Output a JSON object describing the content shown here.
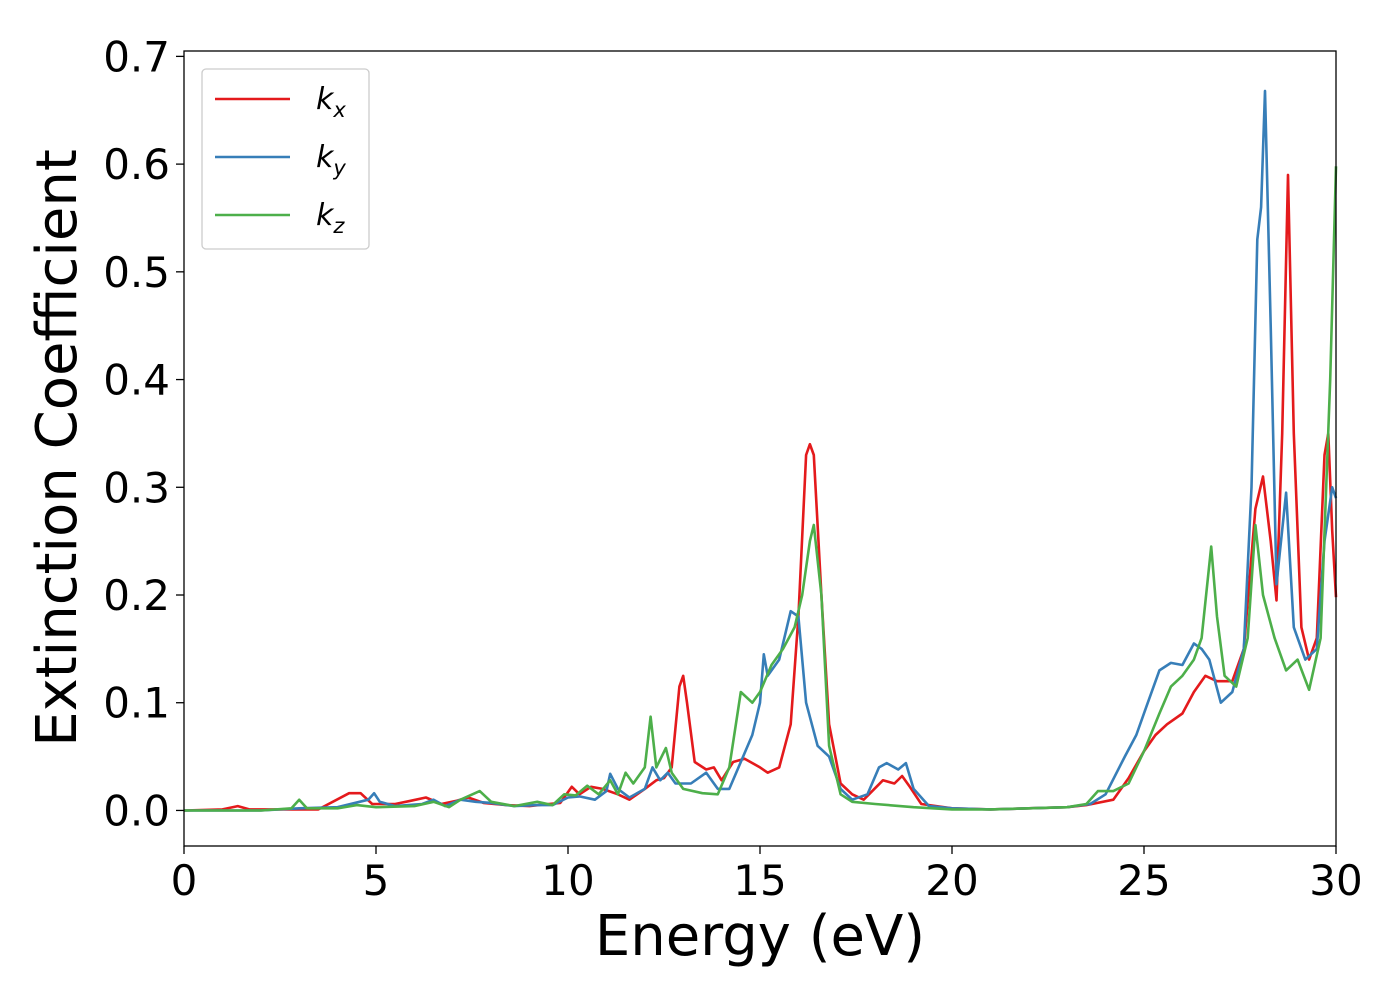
{
  "chart_data": {
    "type": "line",
    "title": "",
    "xlabel": "Energy (eV)",
    "ylabel": "Extinction Coefficient",
    "xlim": [
      0,
      30
    ],
    "ylim": [
      -0.033,
      0.705
    ],
    "xticks": [
      0,
      5,
      10,
      15,
      20,
      25,
      30
    ],
    "xtick_labels": [
      "0",
      "5",
      "10",
      "15",
      "20",
      "25",
      "30"
    ],
    "yticks": [
      0.0,
      0.1,
      0.2,
      0.3,
      0.4,
      0.5,
      0.6,
      0.7
    ],
    "ytick_labels": [
      "0.0",
      "0.1",
      "0.2",
      "0.3",
      "0.4",
      "0.5",
      "0.6",
      "0.7"
    ],
    "grid": false,
    "legend_position": "top-left",
    "series": [
      {
        "name": "kx",
        "base": "k",
        "sub": "x",
        "color": "#e41a1c",
        "points": [
          [
            0,
            0.0
          ],
          [
            1.0,
            0.001
          ],
          [
            1.4,
            0.004
          ],
          [
            1.7,
            0.001
          ],
          [
            2.5,
            0.001
          ],
          [
            3.5,
            0.001
          ],
          [
            4.3,
            0.016
          ],
          [
            4.6,
            0.016
          ],
          [
            4.9,
            0.006
          ],
          [
            5.5,
            0.006
          ],
          [
            5.9,
            0.009
          ],
          [
            6.3,
            0.012
          ],
          [
            6.7,
            0.006
          ],
          [
            7.1,
            0.009
          ],
          [
            7.4,
            0.012
          ],
          [
            7.8,
            0.007
          ],
          [
            8.4,
            0.005
          ],
          [
            9.0,
            0.004
          ],
          [
            9.5,
            0.006
          ],
          [
            9.8,
            0.007
          ],
          [
            10.1,
            0.022
          ],
          [
            10.3,
            0.015
          ],
          [
            10.6,
            0.022
          ],
          [
            10.9,
            0.02
          ],
          [
            11.3,
            0.015
          ],
          [
            11.6,
            0.01
          ],
          [
            12.0,
            0.02
          ],
          [
            12.3,
            0.028
          ],
          [
            12.5,
            0.03
          ],
          [
            12.7,
            0.04
          ],
          [
            12.9,
            0.115
          ],
          [
            13.0,
            0.125
          ],
          [
            13.1,
            0.1
          ],
          [
            13.3,
            0.045
          ],
          [
            13.6,
            0.038
          ],
          [
            13.8,
            0.04
          ],
          [
            14.0,
            0.028
          ],
          [
            14.3,
            0.045
          ],
          [
            14.6,
            0.048
          ],
          [
            15.0,
            0.04
          ],
          [
            15.2,
            0.035
          ],
          [
            15.5,
            0.04
          ],
          [
            15.8,
            0.08
          ],
          [
            16.0,
            0.18
          ],
          [
            16.2,
            0.33
          ],
          [
            16.3,
            0.34
          ],
          [
            16.4,
            0.33
          ],
          [
            16.6,
            0.2
          ],
          [
            16.8,
            0.08
          ],
          [
            17.1,
            0.025
          ],
          [
            17.4,
            0.015
          ],
          [
            17.7,
            0.01
          ],
          [
            18.2,
            0.028
          ],
          [
            18.5,
            0.025
          ],
          [
            18.7,
            0.032
          ],
          [
            18.9,
            0.022
          ],
          [
            19.2,
            0.006
          ],
          [
            20.0,
            0.002
          ],
          [
            21.0,
            0.001
          ],
          [
            22.0,
            0.002
          ],
          [
            23.0,
            0.003
          ],
          [
            23.5,
            0.005
          ],
          [
            24.2,
            0.01
          ],
          [
            24.6,
            0.03
          ],
          [
            25.0,
            0.055
          ],
          [
            25.3,
            0.07
          ],
          [
            25.6,
            0.08
          ],
          [
            26.0,
            0.09
          ],
          [
            26.3,
            0.11
          ],
          [
            26.6,
            0.125
          ],
          [
            26.9,
            0.12
          ],
          [
            27.3,
            0.12
          ],
          [
            27.6,
            0.15
          ],
          [
            27.9,
            0.28
          ],
          [
            28.1,
            0.31
          ],
          [
            28.3,
            0.25
          ],
          [
            28.45,
            0.195
          ],
          [
            28.6,
            0.35
          ],
          [
            28.75,
            0.59
          ],
          [
            28.9,
            0.35
          ],
          [
            29.1,
            0.17
          ],
          [
            29.3,
            0.14
          ],
          [
            29.5,
            0.16
          ],
          [
            29.7,
            0.33
          ],
          [
            29.8,
            0.35
          ],
          [
            29.9,
            0.26
          ],
          [
            30.0,
            0.198
          ]
        ]
      },
      {
        "name": "ky",
        "base": "k",
        "sub": "y",
        "color": "#377eb8",
        "points": [
          [
            0,
            0.0
          ],
          [
            1.0,
            0.0
          ],
          [
            2.0,
            0.0
          ],
          [
            3.0,
            0.002
          ],
          [
            4.0,
            0.003
          ],
          [
            4.8,
            0.01
          ],
          [
            4.95,
            0.016
          ],
          [
            5.1,
            0.008
          ],
          [
            5.5,
            0.004
          ],
          [
            6.2,
            0.006
          ],
          [
            6.5,
            0.01
          ],
          [
            6.8,
            0.004
          ],
          [
            7.2,
            0.01
          ],
          [
            7.6,
            0.008
          ],
          [
            8.0,
            0.007
          ],
          [
            8.6,
            0.004
          ],
          [
            9.2,
            0.005
          ],
          [
            9.6,
            0.005
          ],
          [
            10.0,
            0.012
          ],
          [
            10.3,
            0.013
          ],
          [
            10.7,
            0.01
          ],
          [
            11.0,
            0.018
          ],
          [
            11.1,
            0.034
          ],
          [
            11.3,
            0.02
          ],
          [
            11.6,
            0.012
          ],
          [
            12.0,
            0.02
          ],
          [
            12.2,
            0.04
          ],
          [
            12.4,
            0.028
          ],
          [
            12.6,
            0.035
          ],
          [
            12.8,
            0.025
          ],
          [
            13.2,
            0.025
          ],
          [
            13.6,
            0.035
          ],
          [
            13.9,
            0.02
          ],
          [
            14.2,
            0.02
          ],
          [
            14.5,
            0.045
          ],
          [
            14.8,
            0.07
          ],
          [
            15.0,
            0.1
          ],
          [
            15.1,
            0.145
          ],
          [
            15.2,
            0.125
          ],
          [
            15.5,
            0.14
          ],
          [
            15.8,
            0.185
          ],
          [
            16.0,
            0.18
          ],
          [
            16.2,
            0.1
          ],
          [
            16.5,
            0.06
          ],
          [
            16.8,
            0.05
          ],
          [
            17.1,
            0.02
          ],
          [
            17.4,
            0.01
          ],
          [
            17.8,
            0.015
          ],
          [
            18.1,
            0.04
          ],
          [
            18.3,
            0.044
          ],
          [
            18.6,
            0.038
          ],
          [
            18.8,
            0.044
          ],
          [
            19.0,
            0.02
          ],
          [
            19.4,
            0.004
          ],
          [
            20.0,
            0.002
          ],
          [
            21.0,
            0.001
          ],
          [
            22.0,
            0.002
          ],
          [
            23.0,
            0.003
          ],
          [
            23.6,
            0.006
          ],
          [
            24.0,
            0.015
          ],
          [
            24.5,
            0.05
          ],
          [
            24.8,
            0.07
          ],
          [
            25.1,
            0.1
          ],
          [
            25.4,
            0.13
          ],
          [
            25.7,
            0.137
          ],
          [
            26.0,
            0.135
          ],
          [
            26.3,
            0.155
          ],
          [
            26.5,
            0.15
          ],
          [
            26.7,
            0.14
          ],
          [
            27.0,
            0.1
          ],
          [
            27.3,
            0.11
          ],
          [
            27.6,
            0.15
          ],
          [
            27.8,
            0.3
          ],
          [
            27.95,
            0.53
          ],
          [
            28.05,
            0.56
          ],
          [
            28.15,
            0.668
          ],
          [
            28.3,
            0.45
          ],
          [
            28.45,
            0.21
          ],
          [
            28.7,
            0.295
          ],
          [
            28.9,
            0.17
          ],
          [
            29.2,
            0.14
          ],
          [
            29.5,
            0.15
          ],
          [
            29.7,
            0.25
          ],
          [
            29.9,
            0.3
          ],
          [
            30.0,
            0.29
          ]
        ]
      },
      {
        "name": "kz",
        "base": "k",
        "sub": "z",
        "color": "#4daf4a",
        "points": [
          [
            0,
            0.0
          ],
          [
            1.0,
            0.0
          ],
          [
            2.0,
            0.0
          ],
          [
            2.8,
            0.002
          ],
          [
            3.0,
            0.01
          ],
          [
            3.2,
            0.002
          ],
          [
            4.0,
            0.002
          ],
          [
            4.5,
            0.005
          ],
          [
            5.0,
            0.003
          ],
          [
            6.0,
            0.004
          ],
          [
            6.5,
            0.008
          ],
          [
            6.9,
            0.003
          ],
          [
            7.2,
            0.01
          ],
          [
            7.7,
            0.018
          ],
          [
            8.0,
            0.008
          ],
          [
            8.6,
            0.004
          ],
          [
            9.2,
            0.008
          ],
          [
            9.6,
            0.005
          ],
          [
            9.9,
            0.015
          ],
          [
            10.2,
            0.014
          ],
          [
            10.5,
            0.023
          ],
          [
            10.8,
            0.015
          ],
          [
            11.1,
            0.028
          ],
          [
            11.3,
            0.015
          ],
          [
            11.5,
            0.035
          ],
          [
            11.7,
            0.025
          ],
          [
            12.0,
            0.04
          ],
          [
            12.15,
            0.087
          ],
          [
            12.3,
            0.04
          ],
          [
            12.55,
            0.058
          ],
          [
            12.7,
            0.035
          ],
          [
            13.0,
            0.02
          ],
          [
            13.5,
            0.016
          ],
          [
            13.9,
            0.015
          ],
          [
            14.2,
            0.04
          ],
          [
            14.5,
            0.11
          ],
          [
            14.8,
            0.1
          ],
          [
            15.0,
            0.11
          ],
          [
            15.3,
            0.135
          ],
          [
            15.6,
            0.15
          ],
          [
            15.9,
            0.17
          ],
          [
            16.1,
            0.2
          ],
          [
            16.3,
            0.25
          ],
          [
            16.4,
            0.265
          ],
          [
            16.6,
            0.2
          ],
          [
            16.8,
            0.06
          ],
          [
            17.1,
            0.015
          ],
          [
            17.4,
            0.008
          ],
          [
            18.0,
            0.006
          ],
          [
            19.0,
            0.003
          ],
          [
            20.0,
            0.001
          ],
          [
            21.0,
            0.001
          ],
          [
            22.0,
            0.002
          ],
          [
            23.0,
            0.003
          ],
          [
            23.5,
            0.006
          ],
          [
            23.8,
            0.018
          ],
          [
            24.2,
            0.018
          ],
          [
            24.6,
            0.025
          ],
          [
            25.0,
            0.055
          ],
          [
            25.4,
            0.09
          ],
          [
            25.7,
            0.115
          ],
          [
            26.0,
            0.125
          ],
          [
            26.3,
            0.14
          ],
          [
            26.5,
            0.16
          ],
          [
            26.75,
            0.245
          ],
          [
            26.9,
            0.18
          ],
          [
            27.1,
            0.125
          ],
          [
            27.4,
            0.115
          ],
          [
            27.7,
            0.16
          ],
          [
            27.9,
            0.265
          ],
          [
            28.1,
            0.2
          ],
          [
            28.4,
            0.16
          ],
          [
            28.7,
            0.13
          ],
          [
            29.0,
            0.14
          ],
          [
            29.3,
            0.112
          ],
          [
            29.6,
            0.16
          ],
          [
            29.85,
            0.4
          ],
          [
            30.0,
            0.598
          ]
        ]
      }
    ]
  }
}
